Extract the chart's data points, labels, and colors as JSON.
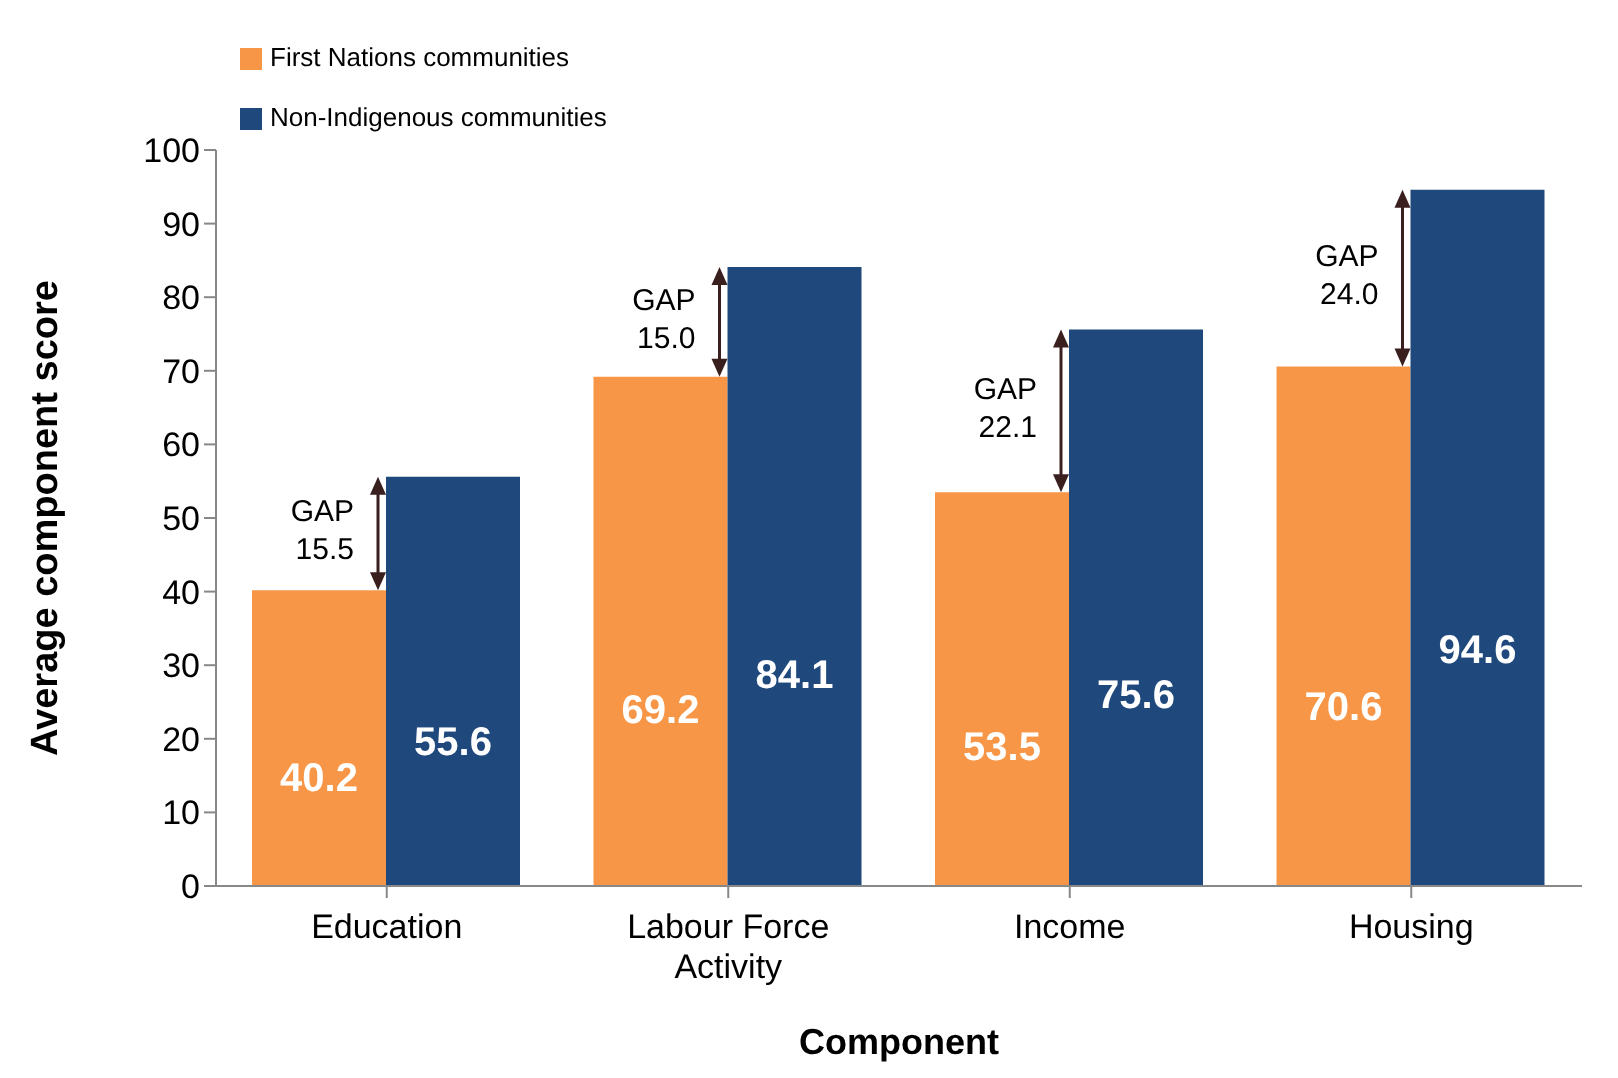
{
  "chart_data": {
    "type": "bar",
    "xlabel": "Component",
    "ylabel": "Average component score",
    "categories": [
      "Education",
      "Labour Force Activity",
      "Income",
      "Housing"
    ],
    "series": [
      {
        "name": "First Nations communities",
        "color": "#f79646",
        "values": [
          40.2,
          69.2,
          53.5,
          70.6
        ]
      },
      {
        "name": "Non-Indigenous communities",
        "color": "#1f497d",
        "values": [
          55.6,
          84.1,
          75.6,
          94.6
        ]
      }
    ],
    "ylim": [
      0,
      100
    ],
    "yticks": [
      0,
      10,
      20,
      30,
      40,
      50,
      60,
      70,
      80,
      90,
      100
    ],
    "grid": false,
    "legend": "top left",
    "data_labels": true,
    "annotations": [
      {
        "text": "GAP 15.5",
        "x": "Education",
        "y": 55.6
      },
      {
        "text": "GAP 15.0",
        "x": "Labour Force Activity",
        "y": 84.1
      },
      {
        "text": "GAP 22.1",
        "x": "Income",
        "y": 75.6
      },
      {
        "text": "GAP 24.0",
        "x": "Housing",
        "y": 94.6
      }
    ]
  }
}
